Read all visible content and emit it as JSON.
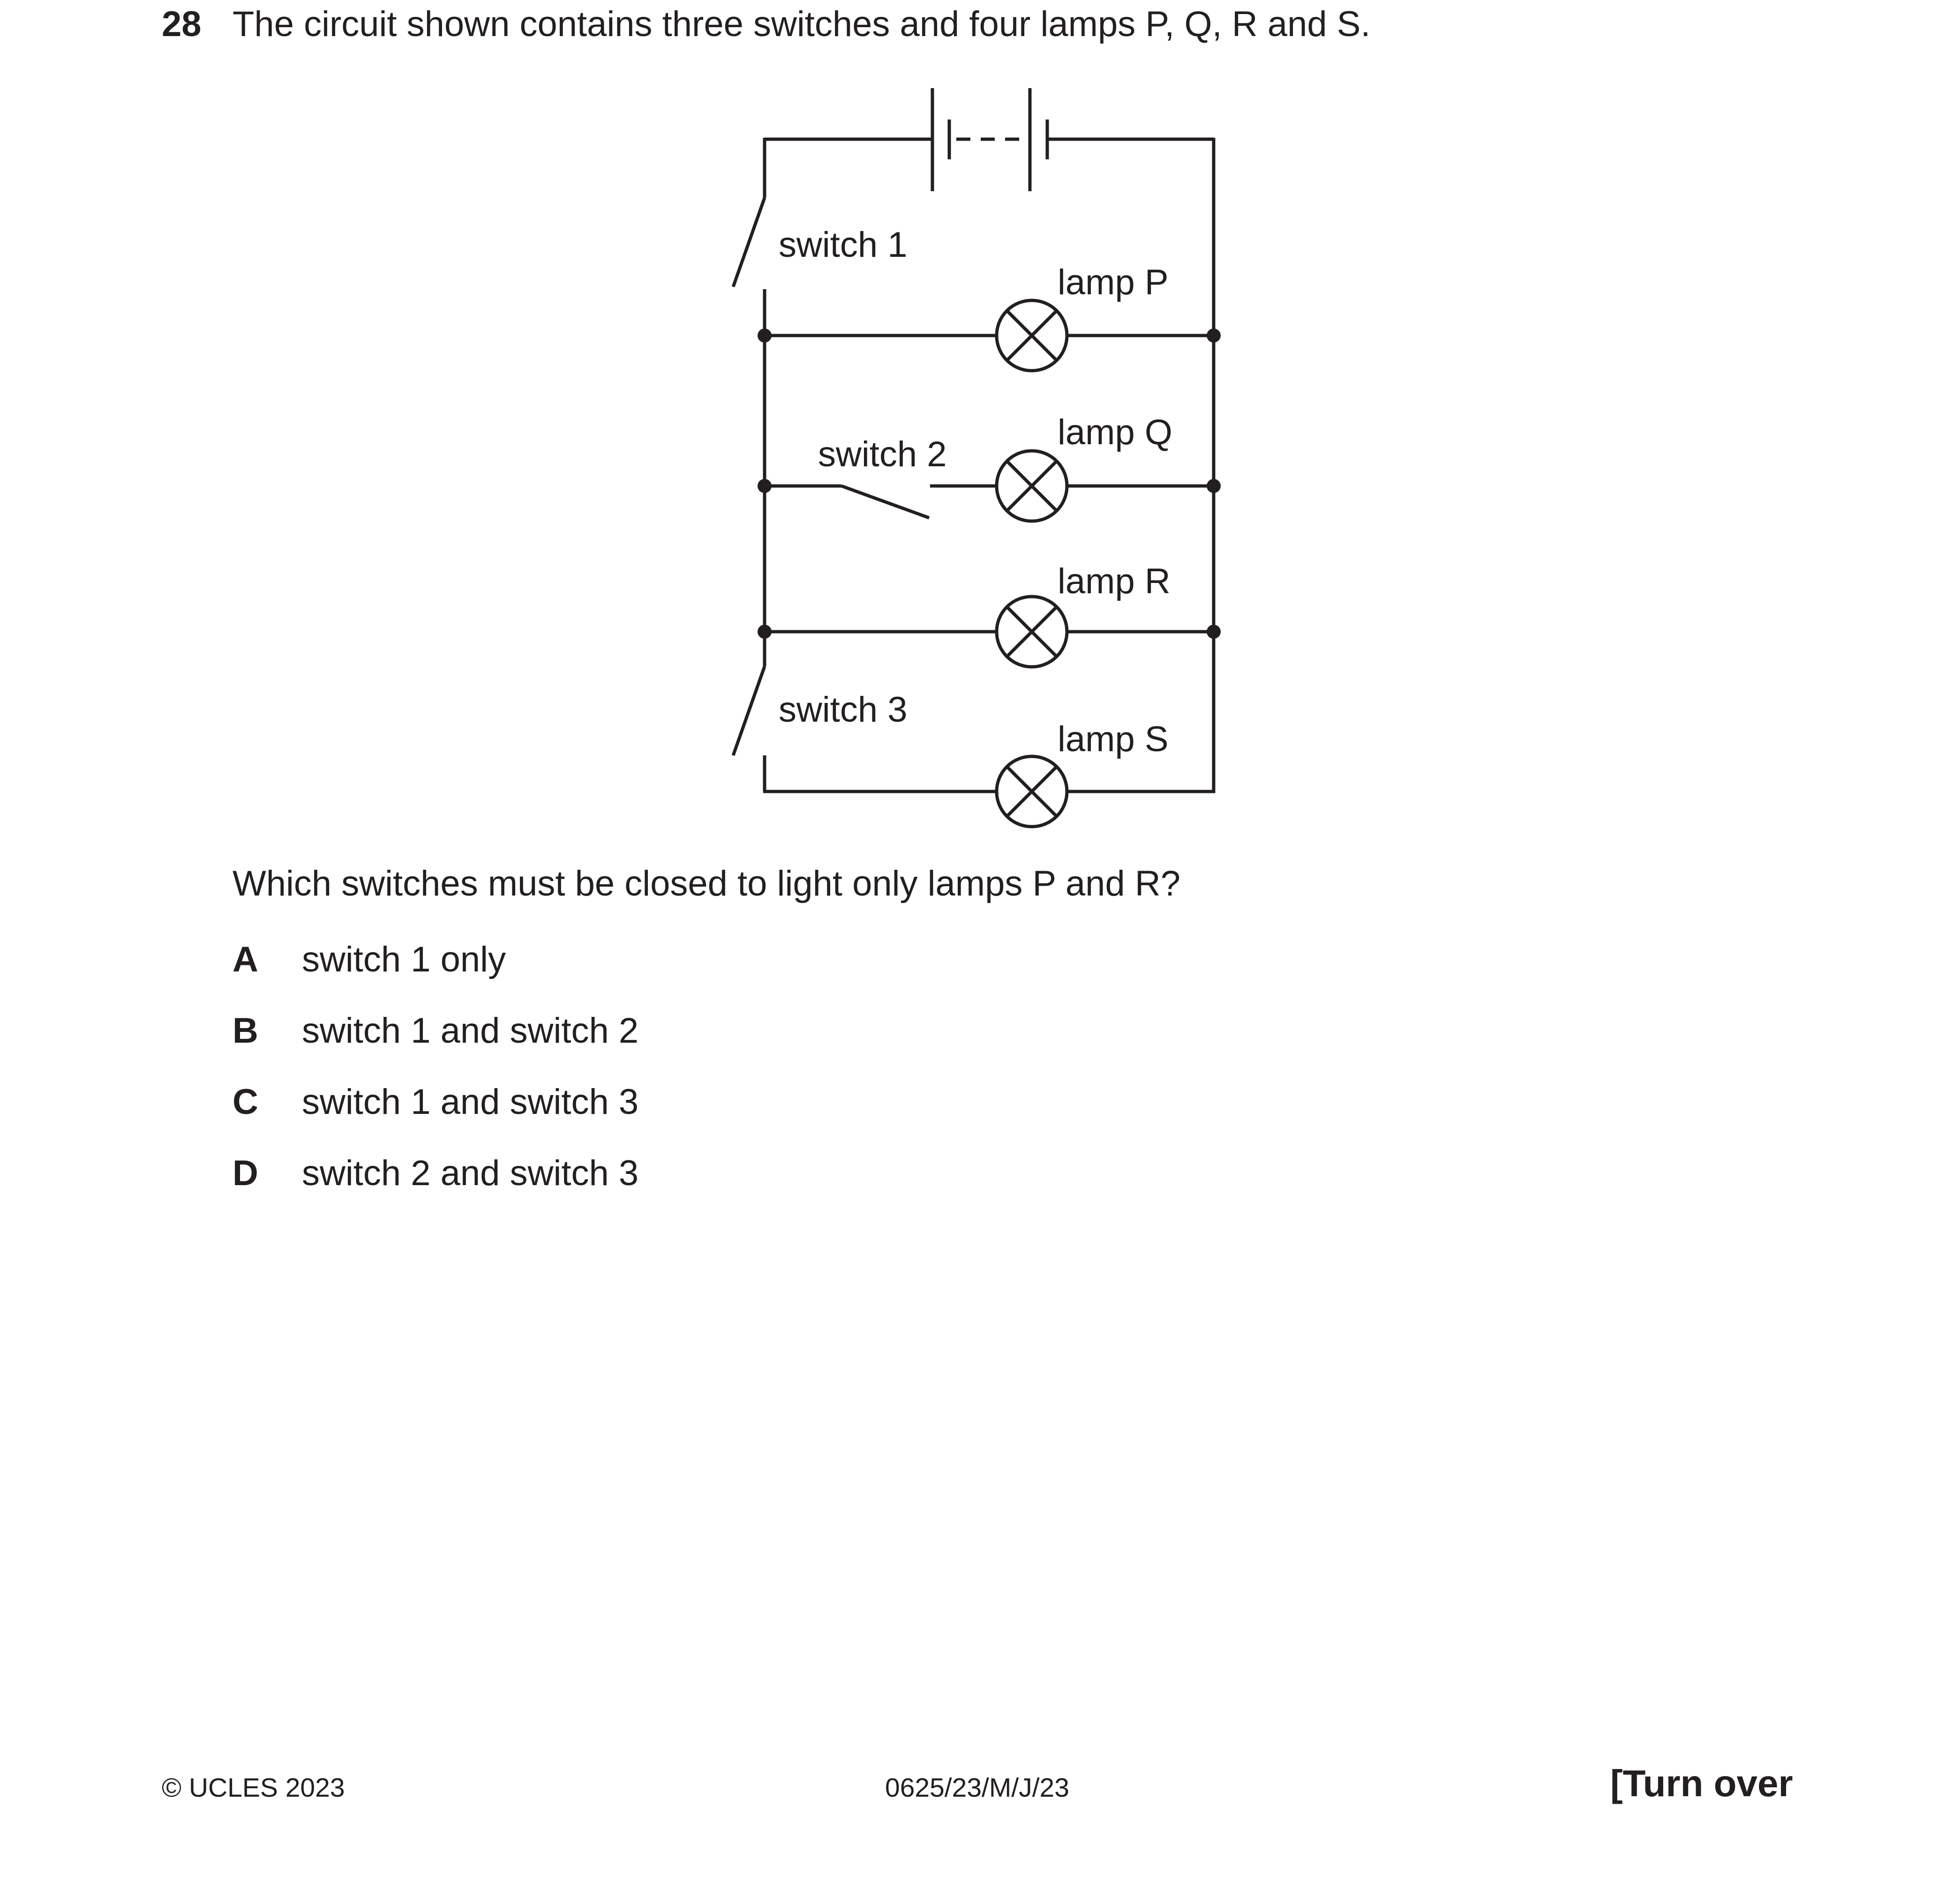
{
  "question": {
    "number": "28",
    "text": "The circuit shown contains three switches and four lamps P, Q, R and S.",
    "prompt": "Which switches must be closed to light only lamps P and R?"
  },
  "diagram": {
    "labels": {
      "switch1": "switch 1",
      "switch2": "switch 2",
      "switch3": "switch 3",
      "lampP": "lamp P",
      "lampQ": "lamp Q",
      "lampR": "lamp R",
      "lampS": "lamp S"
    },
    "icons": [
      "cell-battery-icon",
      "open-switch-icon",
      "lamp-icon",
      "junction-dot-icon"
    ]
  },
  "options": [
    {
      "letter": "A",
      "text": "switch 1 only"
    },
    {
      "letter": "B",
      "text": "switch 1 and switch 2"
    },
    {
      "letter": "C",
      "text": "switch 1 and switch 3"
    },
    {
      "letter": "D",
      "text": "switch 2 and switch 3"
    }
  ],
  "footer": {
    "copyright": "© UCLES 2023",
    "code": "0625/23/M/J/23",
    "turn_over": "[Turn over"
  }
}
